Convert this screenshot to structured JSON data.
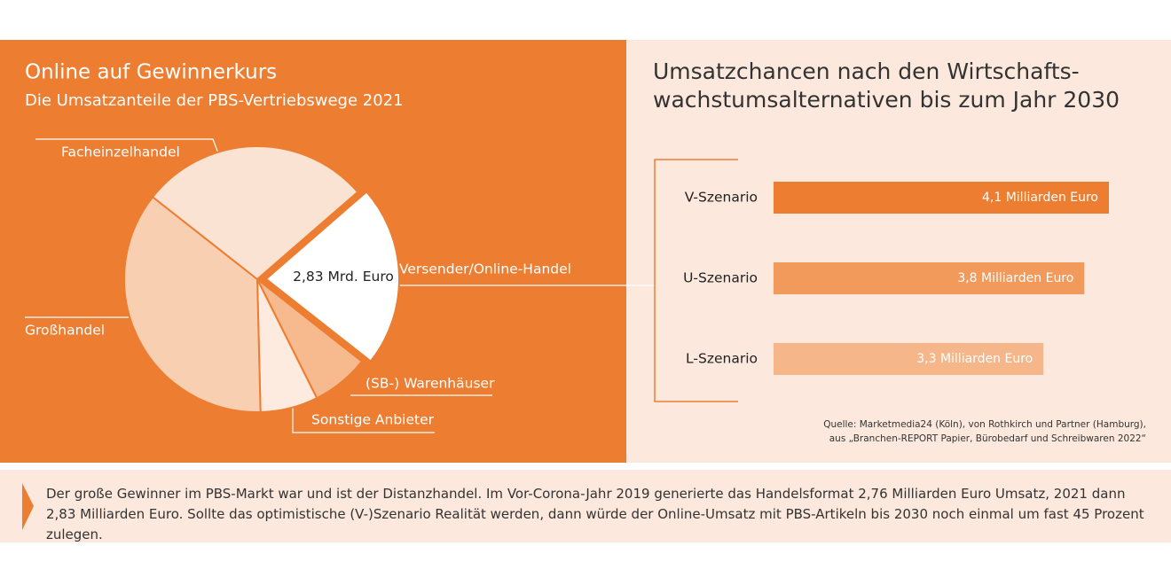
{
  "chart_data": [
    {
      "type": "pie",
      "title": "Online auf Gewinnerkurs",
      "subtitle": "Die Umsatzanteile der PBS-Vertriebswege 2021",
      "categories": [
        "Versender/Online-Handel",
        "(SB-) Warenhäuser",
        "Sonstige Anbieter",
        "Großhandel",
        "Facheinzelhandel"
      ],
      "values": [
        22,
        7,
        7,
        36,
        28
      ],
      "colors": [
        "#ffffff",
        "#f7b98e",
        "#fdebdf",
        "#f9cfb2",
        "#fbe3d4"
      ],
      "annotation": "2,83 Mrd. Euro"
    },
    {
      "type": "hbar",
      "title_lines": [
        "Umsatzchancen nach den Wirtschafts-",
        "wachstumsalternativen bis zum Jahr 2030"
      ],
      "categories": [
        "V-Szenario",
        "U-Szenario",
        "L-Szenario"
      ],
      "values": [
        4.1,
        3.8,
        3.3
      ],
      "value_labels": [
        "4,1 Milliarden Euro",
        "3,8 Milliarden Euro",
        "3,3 Milliarden Euro"
      ],
      "colors": [
        "#ed7d31",
        "#f19a5b",
        "#f5b68a"
      ],
      "source_lines": [
        "Quelle: Marketmedia24 (Köln), von Rothkirch und Partner (Hamburg),",
        "aus „Branchen-REPORT Papier, Bürobedarf und Schreibwaren 2022“"
      ]
    }
  ],
  "footer": {
    "text": "Der große Gewinner im PBS-Markt war und ist der Distanzhandel. Im Vor-Corona-Jahr 2019 generierte das Handelsformat 2,76 Milliarden Euro Umsatz, 2021 dann 2,83 Milliarden Euro. Sollte das optimistische (V-)Szenario Realität werden, dann würde der Online-Umsatz mit PBS-Artikeln bis 2030 noch einmal um fast 45 Prozent zulegen."
  }
}
